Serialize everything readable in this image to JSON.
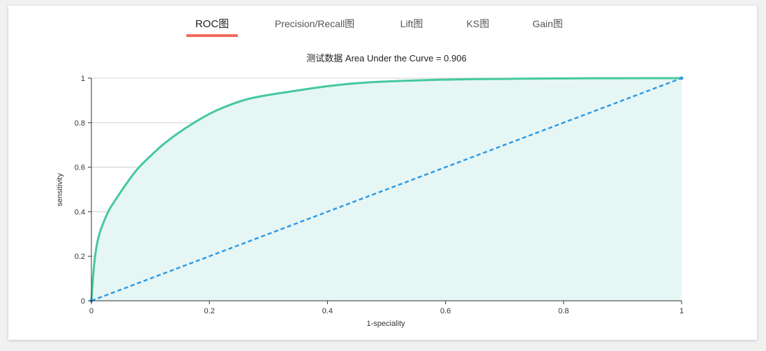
{
  "tabs": [
    {
      "label": "ROC图",
      "active": true
    },
    {
      "label": "Precision/Recall图",
      "active": false
    },
    {
      "label": "Lift图",
      "active": false
    },
    {
      "label": "KS图",
      "active": false
    },
    {
      "label": "Gain图",
      "active": false
    }
  ],
  "colors": {
    "accent_underline": "#ef6b5e",
    "curve": "#45c8a0",
    "area_fill": "#e6f6f5",
    "diagonal": "#2e9be6",
    "grid": "#c9d3d0"
  },
  "chart_data": {
    "type": "area",
    "title": "测试数据 Area Under the Curve = 0.906",
    "xlabel": "1-speciality",
    "ylabel": "sensitivity",
    "xlim": [
      0,
      1
    ],
    "ylim": [
      0,
      1
    ],
    "x_ticks": [
      "0",
      "0.2",
      "0.4",
      "0.6",
      "0.8",
      "1"
    ],
    "y_ticks": [
      "0",
      "0.2",
      "0.4",
      "0.6",
      "0.8",
      "1"
    ],
    "grid": true,
    "series": [
      {
        "style": "solid-filled",
        "x": [
          0,
          0.003,
          0.007,
          0.012,
          0.02,
          0.03,
          0.04,
          0.06,
          0.08,
          0.1,
          0.12,
          0.15,
          0.18,
          0.2,
          0.22,
          0.26,
          0.3,
          0.35,
          0.4,
          0.45,
          0.5,
          0.6,
          0.7,
          0.8,
          0.9,
          1.0
        ],
        "y": [
          0,
          0.12,
          0.22,
          0.29,
          0.35,
          0.41,
          0.45,
          0.53,
          0.6,
          0.65,
          0.7,
          0.76,
          0.81,
          0.84,
          0.865,
          0.905,
          0.925,
          0.945,
          0.965,
          0.978,
          0.986,
          0.994,
          0.997,
          0.999,
          1.0,
          1.0
        ]
      },
      {
        "style": "dashed",
        "x": [
          0,
          1
        ],
        "y": [
          0,
          1
        ]
      }
    ]
  }
}
